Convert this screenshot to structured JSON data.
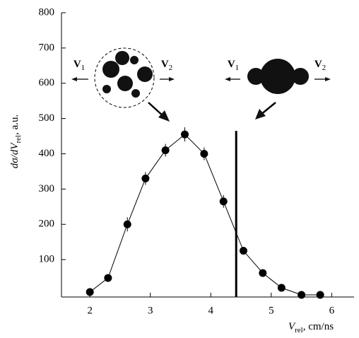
{
  "chart_data": {
    "type": "line",
    "x": [
      2.0,
      2.3,
      2.62,
      2.92,
      3.25,
      3.57,
      3.89,
      4.21,
      4.54,
      4.86,
      5.17,
      5.5,
      5.81
    ],
    "values": [
      8,
      48,
      200,
      330,
      410,
      455,
      400,
      265,
      125,
      62,
      20,
      0,
      0
    ],
    "errors": [
      5,
      8,
      20,
      18,
      18,
      20,
      18,
      18,
      10,
      5,
      5,
      0,
      0
    ],
    "color": "#000000",
    "xlim": [
      1.53,
      6.37
    ],
    "ylim": [
      -6,
      800
    ],
    "xticks": [
      2,
      3,
      4,
      5,
      6
    ],
    "yticks": [
      100,
      200,
      300,
      400,
      500,
      600,
      700,
      800
    ],
    "xlabel": {
      "main": "V",
      "sub": "rel",
      "rest": ", cm/ns"
    },
    "ylabel": {
      "main": "dσ/dV",
      "sub": "rel",
      "rest": ", a.u."
    },
    "vline": {
      "x": 4.42,
      "ymax": 465
    },
    "annotations": [
      {
        "main": "V",
        "sub": "1"
      },
      {
        "main": "V",
        "sub": "2"
      },
      {
        "main": "V",
        "sub": "1"
      },
      {
        "main": "V",
        "sub": "2"
      }
    ]
  }
}
